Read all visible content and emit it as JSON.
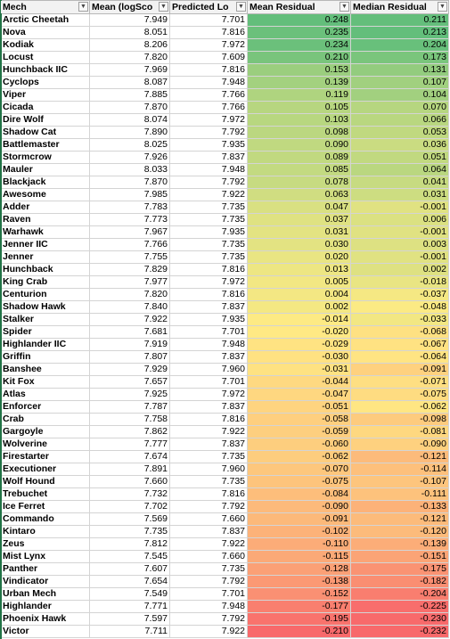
{
  "columns": [
    "Mech",
    "Mean (logSco",
    "Predicted Lo",
    "Mean Residual",
    "Median Residual"
  ],
  "filter_icon": "chevron-down-icon",
  "heat_colors": {
    "high": "#63be7b",
    "mid": "#ffeb84",
    "low": "#f8696b"
  },
  "rows": [
    [
      "Arctic Cheetah",
      "7.949",
      "7.701",
      "0.248",
      "0.211"
    ],
    [
      "Nova",
      "8.051",
      "7.816",
      "0.235",
      "0.213"
    ],
    [
      "Kodiak",
      "8.206",
      "7.972",
      "0.234",
      "0.204"
    ],
    [
      "Locust",
      "7.820",
      "7.609",
      "0.210",
      "0.173"
    ],
    [
      "Hunchback IIC",
      "7.969",
      "7.816",
      "0.153",
      "0.131"
    ],
    [
      "Cyclops",
      "8.087",
      "7.948",
      "0.139",
      "0.107"
    ],
    [
      "Viper",
      "7.885",
      "7.766",
      "0.119",
      "0.104"
    ],
    [
      "Cicada",
      "7.870",
      "7.766",
      "0.105",
      "0.070"
    ],
    [
      "Dire Wolf",
      "8.074",
      "7.972",
      "0.103",
      "0.066"
    ],
    [
      "Shadow Cat",
      "7.890",
      "7.792",
      "0.098",
      "0.053"
    ],
    [
      "Battlemaster",
      "8.025",
      "7.935",
      "0.090",
      "0.036"
    ],
    [
      "Stormcrow",
      "7.926",
      "7.837",
      "0.089",
      "0.051"
    ],
    [
      "Mauler",
      "8.033",
      "7.948",
      "0.085",
      "0.064"
    ],
    [
      "Blackjack",
      "7.870",
      "7.792",
      "0.078",
      "0.041"
    ],
    [
      "Awesome",
      "7.985",
      "7.922",
      "0.063",
      "0.031"
    ],
    [
      "Adder",
      "7.783",
      "7.735",
      "0.047",
      "-0.001"
    ],
    [
      "Raven",
      "7.773",
      "7.735",
      "0.037",
      "0.006"
    ],
    [
      "Warhawk",
      "7.967",
      "7.935",
      "0.031",
      "-0.001"
    ],
    [
      "Jenner IIC",
      "7.766",
      "7.735",
      "0.030",
      "0.003"
    ],
    [
      "Jenner",
      "7.755",
      "7.735",
      "0.020",
      "-0.001"
    ],
    [
      "Hunchback",
      "7.829",
      "7.816",
      "0.013",
      "0.002"
    ],
    [
      "King Crab",
      "7.977",
      "7.972",
      "0.005",
      "-0.018"
    ],
    [
      "Centurion",
      "7.820",
      "7.816",
      "0.004",
      "-0.037"
    ],
    [
      "Shadow Hawk",
      "7.840",
      "7.837",
      "0.002",
      "-0.048"
    ],
    [
      "Stalker",
      "7.922",
      "7.935",
      "-0.014",
      "-0.033"
    ],
    [
      "Spider",
      "7.681",
      "7.701",
      "-0.020",
      "-0.068"
    ],
    [
      "Highlander IIC",
      "7.919",
      "7.948",
      "-0.029",
      "-0.067"
    ],
    [
      "Griffin",
      "7.807",
      "7.837",
      "-0.030",
      "-0.064"
    ],
    [
      "Banshee",
      "7.929",
      "7.960",
      "-0.031",
      "-0.091"
    ],
    [
      "Kit Fox",
      "7.657",
      "7.701",
      "-0.044",
      "-0.071"
    ],
    [
      "Atlas",
      "7.925",
      "7.972",
      "-0.047",
      "-0.075"
    ],
    [
      "Enforcer",
      "7.787",
      "7.837",
      "-0.051",
      "-0.062"
    ],
    [
      "Crab",
      "7.758",
      "7.816",
      "-0.058",
      "-0.098"
    ],
    [
      "Gargoyle",
      "7.862",
      "7.922",
      "-0.059",
      "-0.081"
    ],
    [
      "Wolverine",
      "7.777",
      "7.837",
      "-0.060",
      "-0.090"
    ],
    [
      "Firestarter",
      "7.674",
      "7.735",
      "-0.062",
      "-0.121"
    ],
    [
      "Executioner",
      "7.891",
      "7.960",
      "-0.070",
      "-0.114"
    ],
    [
      "Wolf Hound",
      "7.660",
      "7.735",
      "-0.075",
      "-0.107"
    ],
    [
      "Trebuchet",
      "7.732",
      "7.816",
      "-0.084",
      "-0.111"
    ],
    [
      "Ice Ferret",
      "7.702",
      "7.792",
      "-0.090",
      "-0.133"
    ],
    [
      "Commando",
      "7.569",
      "7.660",
      "-0.091",
      "-0.121"
    ],
    [
      "Kintaro",
      "7.735",
      "7.837",
      "-0.102",
      "-0.120"
    ],
    [
      "Zeus",
      "7.812",
      "7.922",
      "-0.110",
      "-0.139"
    ],
    [
      "Mist Lynx",
      "7.545",
      "7.660",
      "-0.115",
      "-0.151"
    ],
    [
      "Panther",
      "7.607",
      "7.735",
      "-0.128",
      "-0.175"
    ],
    [
      "Vindicator",
      "7.654",
      "7.792",
      "-0.138",
      "-0.182"
    ],
    [
      "Urban Mech",
      "7.549",
      "7.701",
      "-0.152",
      "-0.204"
    ],
    [
      "Highlander",
      "7.771",
      "7.948",
      "-0.177",
      "-0.225"
    ],
    [
      "Phoenix Hawk",
      "7.597",
      "7.792",
      "-0.195",
      "-0.230"
    ],
    [
      "Victor",
      "7.711",
      "7.922",
      "-0.210",
      "-0.232"
    ]
  ]
}
